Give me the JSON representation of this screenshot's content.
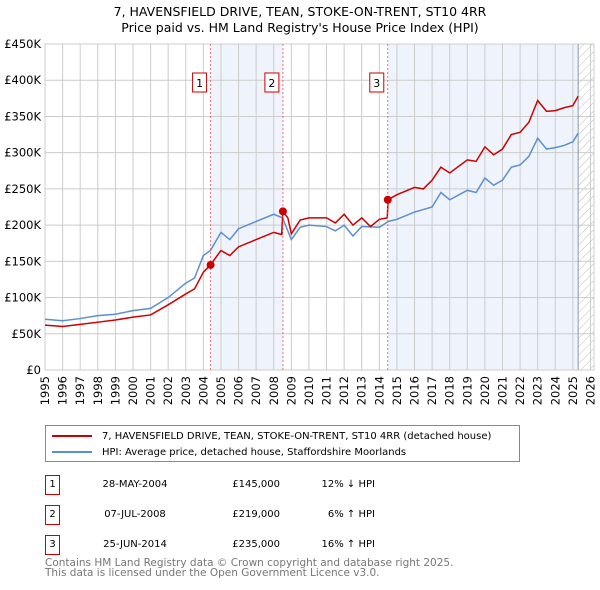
{
  "chart_data": {
    "type": "line",
    "title": "7, HAVENSFIELD DRIVE, TEAN, STOKE-ON-TRENT, ST10 4RR",
    "subtitle": "Price paid vs. HM Land Registry's House Price Index (HPI)",
    "ylim": [
      0,
      450000
    ],
    "xlim": [
      1995,
      2026.2
    ],
    "yticks": [
      {
        "v": 0,
        "label": "£0"
      },
      {
        "v": 50000,
        "label": "£50K"
      },
      {
        "v": 100000,
        "label": "£100K"
      },
      {
        "v": 150000,
        "label": "£150K"
      },
      {
        "v": 200000,
        "label": "£200K"
      },
      {
        "v": 250000,
        "label": "£250K"
      },
      {
        "v": 300000,
        "label": "£300K"
      },
      {
        "v": 350000,
        "label": "£350K"
      },
      {
        "v": 400000,
        "label": "£400K"
      },
      {
        "v": 450000,
        "label": "£450K"
      }
    ],
    "xticks": [
      "1995",
      "1996",
      "1997",
      "1998",
      "1999",
      "2000",
      "2001",
      "2002",
      "2003",
      "2004",
      "2005",
      "2006",
      "2007",
      "2008",
      "2009",
      "2010",
      "2011",
      "2012",
      "2013",
      "2014",
      "2015",
      "2016",
      "2017",
      "2018",
      "2019",
      "2020",
      "2021",
      "2022",
      "2023",
      "2024",
      "2025",
      "2026"
    ],
    "grid": true,
    "data_end": 2025.3,
    "series": [
      {
        "name": "7, HAVENSFIELD DRIVE, TEAN, STOKE-ON-TRENT, ST10 4RR (detached house)",
        "color": "#cc0000",
        "x": [
          1995,
          1996,
          1997,
          1998,
          1999,
          2000,
          2001,
          2002,
          2003,
          2003.5,
          2004,
          2004.4,
          2005,
          2005.5,
          2006,
          2007,
          2008,
          2008.45,
          2008.52,
          2008.8,
          2009,
          2009.5,
          2010,
          2011,
          2011.5,
          2012,
          2012.5,
          2013,
          2013.5,
          2014,
          2014.45,
          2014.5,
          2015,
          2016,
          2016.5,
          2017,
          2017.5,
          2018,
          2019,
          2019.5,
          2020,
          2020.5,
          2021,
          2021.5,
          2022,
          2022.5,
          2023,
          2023.5,
          2024,
          2024.5,
          2025,
          2025.3
        ],
        "y": [
          62000,
          60000,
          63000,
          66000,
          69000,
          73000,
          76000,
          90000,
          105000,
          112000,
          135000,
          145000,
          165000,
          158000,
          170000,
          180000,
          190000,
          187000,
          219000,
          210000,
          188000,
          207000,
          210000,
          210000,
          203000,
          215000,
          200000,
          210000,
          198000,
          208000,
          210000,
          235000,
          242000,
          252000,
          250000,
          262000,
          280000,
          272000,
          290000,
          288000,
          308000,
          297000,
          305000,
          325000,
          328000,
          342000,
          372000,
          357000,
          358000,
          362000,
          365000,
          378000
        ]
      },
      {
        "name": "HPI: Average price, detached house, Staffordshire Moorlands",
        "color": "#5b8fd0",
        "x": [
          1995,
          1996,
          1997,
          1998,
          1999,
          2000,
          2001,
          2002,
          2003,
          2003.5,
          2004,
          2004.4,
          2005,
          2005.5,
          2006,
          2007,
          2008,
          2008.5,
          2009,
          2009.5,
          2010,
          2011,
          2011.5,
          2012,
          2012.5,
          2013,
          2014,
          2014.5,
          2015,
          2016,
          2017,
          2017.5,
          2018,
          2019,
          2019.5,
          2020,
          2020.5,
          2021,
          2021.5,
          2022,
          2022.5,
          2023,
          2023.5,
          2024,
          2024.5,
          2025,
          2025.3
        ],
        "y": [
          70000,
          68000,
          71000,
          75000,
          77000,
          82000,
          85000,
          100000,
          120000,
          127000,
          158000,
          165000,
          190000,
          180000,
          195000,
          205000,
          215000,
          210000,
          180000,
          197000,
          200000,
          198000,
          192000,
          200000,
          185000,
          198000,
          197000,
          205000,
          208000,
          218000,
          225000,
          245000,
          235000,
          248000,
          245000,
          265000,
          255000,
          262000,
          280000,
          283000,
          295000,
          320000,
          305000,
          307000,
          310000,
          315000,
          327000
        ]
      }
    ],
    "sales": [
      {
        "label": "1",
        "x": 2004.41,
        "y": 145000,
        "date": "28-MAY-2004",
        "price": "£145,000",
        "hpi": "12% ↓ HPI"
      },
      {
        "label": "2",
        "x": 2008.52,
        "y": 219000,
        "date": "07-JUL-2008",
        "price": "£219,000",
        "hpi": "6% ↑ HPI"
      },
      {
        "label": "3",
        "x": 2014.48,
        "y": 235000,
        "date": "25-JUN-2014",
        "price": "£235,000",
        "hpi": "16% ↑ HPI"
      }
    ]
  },
  "footer": {
    "line1": "Contains HM Land Registry data © Crown copyright and database right 2025.",
    "line2": "This data is licensed under the Open Government Licence v3.0."
  }
}
